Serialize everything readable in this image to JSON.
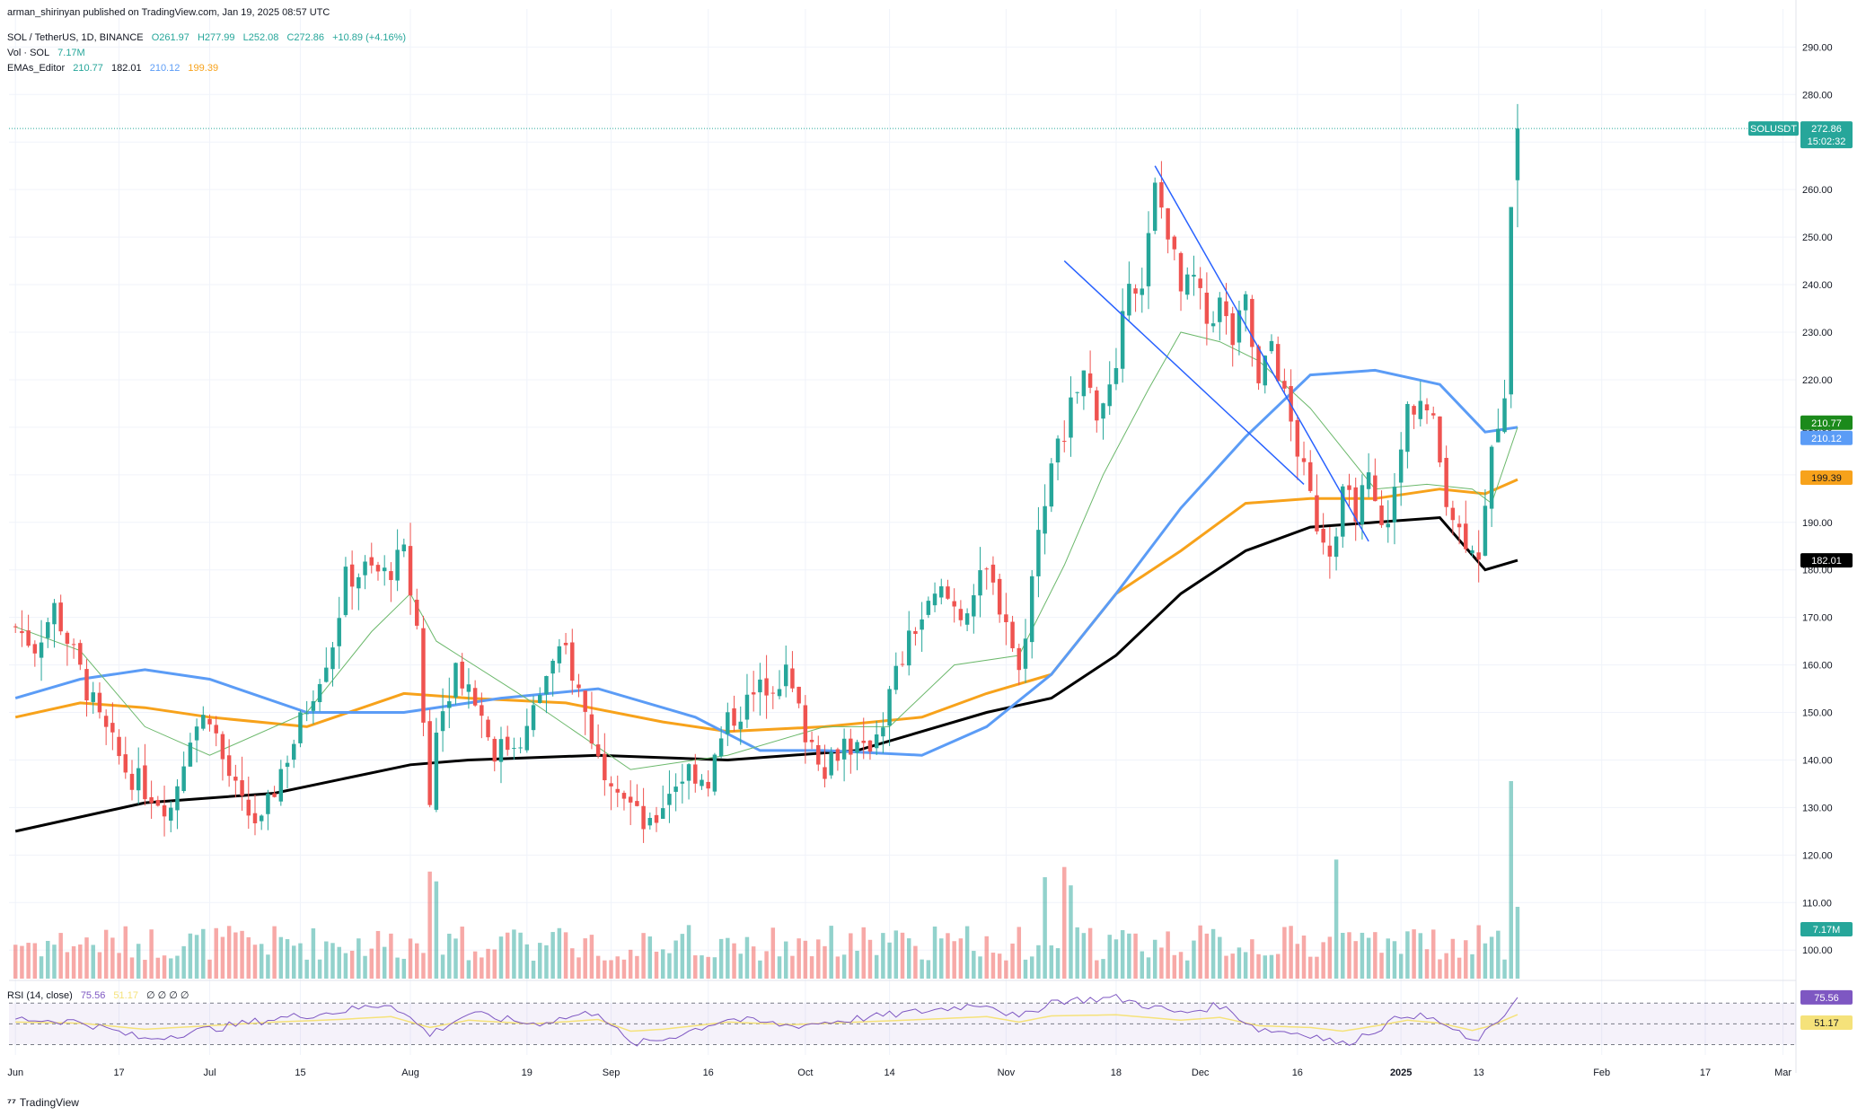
{
  "publisher_line": "arman_shirinyan published on TradingView.com, Jan 19, 2025 08:57 UTC",
  "legend": {
    "symbol": "SOL / TetherUS, 1D, BINANCE",
    "open": "O261.97",
    "high": "H277.99",
    "low": "L252.08",
    "close": "C272.86",
    "change": "+10.89 (+4.16%)",
    "vol_label": "Vol · SOL",
    "vol_value": "7.17M",
    "ema_label": "EMAs_Editor",
    "ema1": "210.77",
    "ema2": "182.01",
    "ema3": "210.12",
    "ema4": "199.39"
  },
  "rsi_legend": {
    "label": "RSI (14, close)",
    "rsi": "75.56",
    "ma": "51.17",
    "extras": "∅ ∅ ∅ ∅"
  },
  "price_badges": {
    "symbol": "SOLUSDT",
    "last": "272.86",
    "countdown": "15:02:32",
    "ema_green": "210.77",
    "ema_blue": "210.12",
    "ema_orange": "199.39",
    "ema_black": "182.01",
    "volume": "7.17M",
    "rsi": "75.56",
    "rsi_ma": "51.17"
  },
  "watermark": "TradingView",
  "colors": {
    "up": "#26a69a",
    "down": "#ef5350",
    "ema_black": "#000000",
    "ema_orange": "#f7a21b",
    "ema_blue": "#5b9cf6",
    "ema_green": "#6bb86b",
    "channel": "#2962ff",
    "rsi_line": "#7e57c2",
    "rsi_ma": "#f5e27a",
    "grid": "#f0f3fa"
  },
  "chart_data": {
    "type": "candlestick",
    "title": "SOL / TetherUS, 1D, BINANCE",
    "ylim": [
      94,
      298
    ],
    "y_ticks": [
      100,
      110,
      120,
      130,
      140,
      150,
      160,
      170,
      180,
      190,
      200,
      210,
      220,
      230,
      240,
      250,
      260,
      270,
      280,
      290
    ],
    "y_tick_labels": [
      "100.00",
      "110.00",
      "120.00",
      "130.00",
      "140.00",
      "150.00",
      "160.00",
      "170.00",
      "180.00",
      "190.00",
      "200.00",
      "210.00",
      "220.00",
      "230.00",
      "240.00",
      "250.00",
      "260.00",
      "270.00",
      "280.00",
      "290.00"
    ],
    "x_tick_labels": [
      {
        "label": "Jun",
        "day": 0
      },
      {
        "label": "17",
        "day": 16
      },
      {
        "label": "Jul",
        "day": 30
      },
      {
        "label": "15",
        "day": 44
      },
      {
        "label": "Aug",
        "day": 61
      },
      {
        "label": "19",
        "day": 79
      },
      {
        "label": "Sep",
        "day": 92
      },
      {
        "label": "16",
        "day": 107
      },
      {
        "label": "Oct",
        "day": 122
      },
      {
        "label": "14",
        "day": 135
      },
      {
        "label": "Nov",
        "day": 153
      },
      {
        "label": "18",
        "day": 170
      },
      {
        "label": "Dec",
        "day": 183
      },
      {
        "label": "16",
        "day": 198
      },
      {
        "label": "2025",
        "day": 214
      },
      {
        "label": "13",
        "day": 226
      },
      {
        "label": "Feb",
        "day": 245
      },
      {
        "label": "17",
        "day": 261
      },
      {
        "label": "Mar",
        "day": 273
      }
    ],
    "x_range_days": [
      -1,
      275
    ],
    "price_key": [
      [
        0,
        168
      ],
      [
        3,
        164
      ],
      [
        6,
        172
      ],
      [
        9,
        162
      ],
      [
        13,
        148
      ],
      [
        17,
        138
      ],
      [
        20,
        134
      ],
      [
        24,
        130
      ],
      [
        27,
        146
      ],
      [
        30,
        150
      ],
      [
        32,
        140
      ],
      [
        35,
        130
      ],
      [
        38,
        126
      ],
      [
        41,
        138
      ],
      [
        43,
        144
      ],
      [
        46,
        155
      ],
      [
        49,
        165
      ],
      [
        51,
        178
      ],
      [
        54,
        180
      ],
      [
        57,
        179
      ],
      [
        60,
        183
      ],
      [
        62,
        168
      ],
      [
        64,
        130
      ],
      [
        65,
        146
      ],
      [
        68,
        160
      ],
      [
        71,
        153
      ],
      [
        74,
        142
      ],
      [
        76,
        143
      ],
      [
        79,
        146
      ],
      [
        82,
        158
      ],
      [
        85,
        163
      ],
      [
        88,
        150
      ],
      [
        90,
        140
      ],
      [
        93,
        136
      ],
      [
        96,
        128
      ],
      [
        98,
        125
      ],
      [
        101,
        134
      ],
      [
        104,
        138
      ],
      [
        107,
        136
      ],
      [
        110,
        148
      ],
      [
        113,
        152
      ],
      [
        116,
        156
      ],
      [
        119,
        158
      ],
      [
        122,
        146
      ],
      [
        125,
        139
      ],
      [
        128,
        144
      ],
      [
        131,
        141
      ],
      [
        134,
        149
      ],
      [
        136,
        158
      ],
      [
        139,
        168
      ],
      [
        143,
        175
      ],
      [
        146,
        171
      ],
      [
        150,
        179
      ],
      [
        153,
        170
      ],
      [
        155,
        158
      ],
      [
        157,
        178
      ],
      [
        159,
        196
      ],
      [
        162,
        210
      ],
      [
        165,
        221
      ],
      [
        167,
        214
      ],
      [
        170,
        220
      ],
      [
        172,
        243
      ],
      [
        174,
        238
      ],
      [
        176,
        260
      ],
      [
        178,
        252
      ],
      [
        180,
        238
      ],
      [
        182,
        241
      ],
      [
        184,
        232
      ],
      [
        186,
        236
      ],
      [
        188,
        228
      ],
      [
        190,
        236
      ],
      [
        192,
        218
      ],
      [
        194,
        228
      ],
      [
        196,
        216
      ],
      [
        199,
        200
      ],
      [
        201,
        190
      ],
      [
        203,
        185
      ],
      [
        205,
        195
      ],
      [
        207,
        193
      ],
      [
        209,
        198
      ],
      [
        211,
        188
      ],
      [
        213,
        196
      ],
      [
        215,
        214
      ],
      [
        217,
        216
      ],
      [
        219,
        210
      ],
      [
        221,
        196
      ],
      [
        223,
        188
      ],
      [
        225,
        186
      ],
      [
        226,
        184
      ],
      [
        227,
        192
      ],
      [
        228,
        204
      ],
      [
        229,
        212
      ],
      [
        230,
        218
      ],
      [
        231,
        258
      ],
      [
        232,
        272.86
      ]
    ],
    "last_close": 272.86,
    "open": 261.97,
    "high": 277.99,
    "low": 252.08,
    "close": 272.86,
    "ema_series": [
      {
        "name": "EMA long (black)",
        "color": "#000000",
        "last": 182.01,
        "points": [
          [
            0,
            125
          ],
          [
            20,
            131
          ],
          [
            40,
            133
          ],
          [
            61,
            139
          ],
          [
            70,
            140
          ],
          [
            90,
            141
          ],
          [
            110,
            140
          ],
          [
            130,
            142
          ],
          [
            150,
            150
          ],
          [
            160,
            153
          ],
          [
            170,
            162
          ],
          [
            180,
            175
          ],
          [
            190,
            184
          ],
          [
            200,
            189
          ],
          [
            210,
            190
          ],
          [
            220,
            191
          ],
          [
            227,
            180
          ],
          [
            232,
            182
          ]
        ]
      },
      {
        "name": "EMA mid (orange)",
        "color": "#f7a21b",
        "last": 199.39,
        "points": [
          [
            0,
            149
          ],
          [
            10,
            152
          ],
          [
            20,
            151
          ],
          [
            30,
            149
          ],
          [
            45,
            147
          ],
          [
            60,
            154
          ],
          [
            70,
            153
          ],
          [
            85,
            152
          ],
          [
            100,
            148
          ],
          [
            110,
            146
          ],
          [
            125,
            147
          ],
          [
            140,
            149
          ],
          [
            150,
            154
          ],
          [
            160,
            158
          ],
          [
            170,
            175
          ],
          [
            180,
            184
          ],
          [
            190,
            194
          ],
          [
            200,
            195
          ],
          [
            210,
            195
          ],
          [
            220,
            197
          ],
          [
            227,
            196
          ],
          [
            232,
            199
          ]
        ]
      },
      {
        "name": "EMA (blue)",
        "color": "#5b9cf6",
        "last": 210.12,
        "points": [
          [
            0,
            153
          ],
          [
            10,
            157
          ],
          [
            20,
            159
          ],
          [
            30,
            157
          ],
          [
            45,
            150
          ],
          [
            60,
            150
          ],
          [
            75,
            153
          ],
          [
            90,
            155
          ],
          [
            105,
            149
          ],
          [
            115,
            142
          ],
          [
            125,
            142
          ],
          [
            140,
            141
          ],
          [
            150,
            147
          ],
          [
            160,
            158
          ],
          [
            170,
            175
          ],
          [
            180,
            193
          ],
          [
            190,
            208
          ],
          [
            200,
            221
          ],
          [
            210,
            222
          ],
          [
            220,
            219
          ],
          [
            227,
            209
          ],
          [
            232,
            210
          ]
        ]
      },
      {
        "name": "EMA short (green)",
        "color": "#6bb86b",
        "last": 210.77,
        "points": [
          [
            0,
            168
          ],
          [
            10,
            163
          ],
          [
            20,
            147
          ],
          [
            30,
            141
          ],
          [
            45,
            150
          ],
          [
            55,
            167
          ],
          [
            61,
            175
          ],
          [
            65,
            165
          ],
          [
            80,
            152
          ],
          [
            95,
            138
          ],
          [
            110,
            141
          ],
          [
            125,
            147
          ],
          [
            135,
            147
          ],
          [
            145,
            160
          ],
          [
            155,
            162
          ],
          [
            162,
            181
          ],
          [
            168,
            200
          ],
          [
            175,
            218
          ],
          [
            180,
            230
          ],
          [
            186,
            228
          ],
          [
            192,
            224
          ],
          [
            200,
            214
          ],
          [
            210,
            197
          ],
          [
            218,
            198
          ],
          [
            225,
            197
          ],
          [
            228,
            194
          ],
          [
            232,
            210
          ]
        ]
      }
    ],
    "channel_lines": [
      {
        "from": [
          176,
          265
        ],
        "to": [
          209,
          186
        ]
      },
      {
        "from": [
          162,
          245
        ],
        "to": [
          199,
          198
        ]
      }
    ],
    "volume": {
      "last": "7.17M",
      "spike_days": [
        64,
        65,
        159,
        162,
        163,
        204,
        231,
        232
      ]
    },
    "rsi": {
      "last": 75.56,
      "ma_last": 51.17,
      "levels": [
        30,
        50,
        70
      ],
      "points": [
        [
          0,
          55
        ],
        [
          10,
          52
        ],
        [
          20,
          35
        ],
        [
          30,
          45
        ],
        [
          40,
          55
        ],
        [
          50,
          62
        ],
        [
          58,
          70
        ],
        [
          64,
          40
        ],
        [
          70,
          60
        ],
        [
          80,
          50
        ],
        [
          90,
          62
        ],
        [
          95,
          30
        ],
        [
          100,
          35
        ],
        [
          110,
          55
        ],
        [
          120,
          48
        ],
        [
          130,
          55
        ],
        [
          140,
          62
        ],
        [
          150,
          70
        ],
        [
          155,
          55
        ],
        [
          160,
          72
        ],
        [
          170,
          75
        ],
        [
          180,
          60
        ],
        [
          186,
          68
        ],
        [
          192,
          45
        ],
        [
          200,
          40
        ],
        [
          205,
          30
        ],
        [
          210,
          44
        ],
        [
          215,
          60
        ],
        [
          220,
          52
        ],
        [
          225,
          32
        ],
        [
          228,
          45
        ],
        [
          232,
          75.56
        ]
      ]
    }
  }
}
